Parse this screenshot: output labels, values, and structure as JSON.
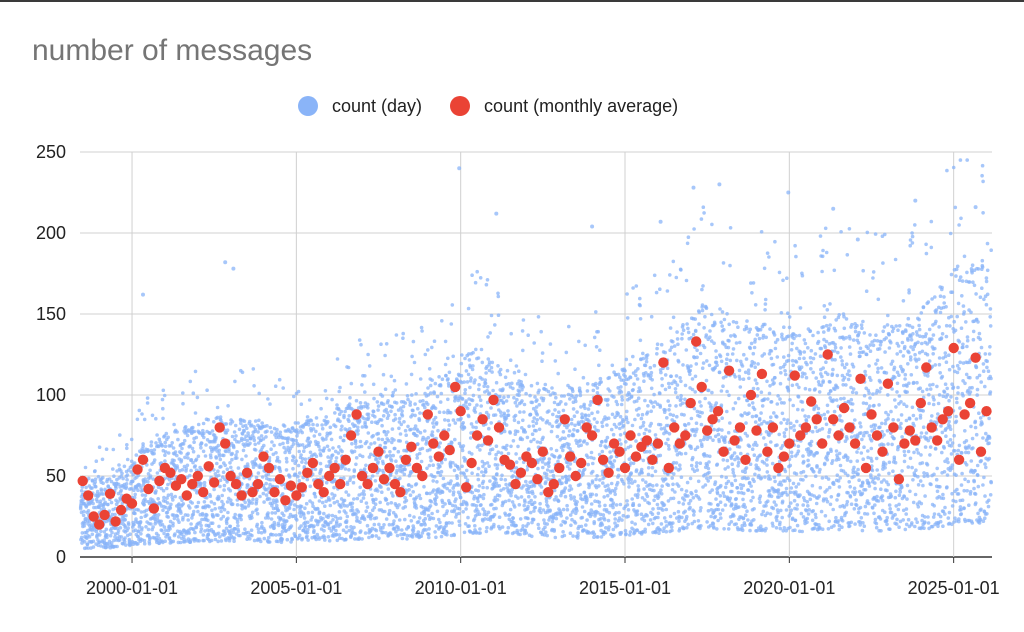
{
  "chart_data": {
    "type": "scatter",
    "title": "number of messages",
    "xlabel": "",
    "ylabel": "",
    "xlim": [
      "1998-06-01",
      "2026-03-01"
    ],
    "ylim": [
      0,
      250
    ],
    "yticks": [
      0,
      50,
      100,
      150,
      200,
      250
    ],
    "xticks": [
      "2000-01-01",
      "2005-01-01",
      "2010-01-01",
      "2015-01-01",
      "2020-01-01",
      "2025-01-01"
    ],
    "grid": true,
    "legend_position": "top",
    "series": [
      {
        "name": "count (day)",
        "color": "#8ab4f8",
        "marker": "small-dot",
        "trend": [
          [
            "1998-06",
            26
          ],
          [
            "1999-06",
            28
          ],
          [
            "2000-06",
            40
          ],
          [
            "2001-06",
            44
          ],
          [
            "2002-06",
            48
          ],
          [
            "2003-06",
            48
          ],
          [
            "2004-06",
            45
          ],
          [
            "2005-06",
            47
          ],
          [
            "2006-06",
            52
          ],
          [
            "2007-06",
            56
          ],
          [
            "2008-06",
            55
          ],
          [
            "2009-06",
            62
          ],
          [
            "2010-06",
            72
          ],
          [
            "2011-06",
            65
          ],
          [
            "2012-06",
            60
          ],
          [
            "2013-06",
            58
          ],
          [
            "2014-06",
            62
          ],
          [
            "2015-06",
            68
          ],
          [
            "2016-06",
            75
          ],
          [
            "2017-06",
            88
          ],
          [
            "2018-06",
            82
          ],
          [
            "2019-06",
            80
          ],
          [
            "2020-06",
            78
          ],
          [
            "2021-06",
            85
          ],
          [
            "2022-06",
            80
          ],
          [
            "2023-06",
            80
          ],
          [
            "2024-06",
            90
          ],
          [
            "2025-06",
            105
          ],
          [
            "2026-02",
            98
          ]
        ],
        "notable_points": [
          [
            "2009-12-15",
            240
          ],
          [
            "2017-02-01",
            228
          ],
          [
            "2017-11-15",
            230
          ],
          [
            "2019-12-20",
            225
          ],
          [
            "2023-11-01",
            220
          ],
          [
            "2025-09-01",
            216
          ],
          [
            "2002-11-01",
            182
          ],
          [
            "2003-02-01",
            178
          ],
          [
            "2000-05-01",
            162
          ],
          [
            "2011-02-01",
            212
          ],
          [
            "2014-01-01",
            204
          ],
          [
            "2021-05-01",
            215
          ],
          [
            "2016-02-01",
            207
          ],
          [
            "2022-02-01",
            196
          ]
        ]
      },
      {
        "name": "count (monthly average)",
        "color": "#ea4335",
        "marker": "dot",
        "points": [
          [
            "1998-07-01",
            47
          ],
          [
            "1998-09-01",
            38
          ],
          [
            "1998-11-01",
            25
          ],
          [
            "1999-01-01",
            20
          ],
          [
            "1999-03-01",
            26
          ],
          [
            "1999-05-01",
            39
          ],
          [
            "1999-07-01",
            22
          ],
          [
            "1999-09-01",
            29
          ],
          [
            "1999-11-01",
            36
          ],
          [
            "2000-01-01",
            33
          ],
          [
            "2000-03-01",
            54
          ],
          [
            "2000-05-01",
            60
          ],
          [
            "2000-07-01",
            42
          ],
          [
            "2000-09-01",
            30
          ],
          [
            "2000-11-01",
            47
          ],
          [
            "2001-01-01",
            55
          ],
          [
            "2001-03-01",
            52
          ],
          [
            "2001-05-01",
            44
          ],
          [
            "2001-07-01",
            48
          ],
          [
            "2001-09-01",
            38
          ],
          [
            "2001-11-01",
            45
          ],
          [
            "2002-01-01",
            50
          ],
          [
            "2002-03-01",
            40
          ],
          [
            "2002-05-01",
            56
          ],
          [
            "2002-07-01",
            46
          ],
          [
            "2002-09-01",
            80
          ],
          [
            "2002-11-01",
            70
          ],
          [
            "2003-01-01",
            50
          ],
          [
            "2003-03-01",
            45
          ],
          [
            "2003-05-01",
            38
          ],
          [
            "2003-07-01",
            52
          ],
          [
            "2003-09-01",
            40
          ],
          [
            "2003-11-01",
            45
          ],
          [
            "2004-01-01",
            62
          ],
          [
            "2004-03-01",
            55
          ],
          [
            "2004-05-01",
            40
          ],
          [
            "2004-07-01",
            48
          ],
          [
            "2004-09-01",
            35
          ],
          [
            "2004-11-01",
            44
          ],
          [
            "2005-01-01",
            38
          ],
          [
            "2005-03-01",
            43
          ],
          [
            "2005-05-01",
            52
          ],
          [
            "2005-07-01",
            58
          ],
          [
            "2005-09-01",
            45
          ],
          [
            "2005-11-01",
            40
          ],
          [
            "2006-01-01",
            50
          ],
          [
            "2006-03-01",
            55
          ],
          [
            "2006-05-01",
            45
          ],
          [
            "2006-07-01",
            60
          ],
          [
            "2006-09-01",
            75
          ],
          [
            "2006-11-01",
            88
          ],
          [
            "2007-01-01",
            50
          ],
          [
            "2007-03-01",
            45
          ],
          [
            "2007-05-01",
            55
          ],
          [
            "2007-07-01",
            65
          ],
          [
            "2007-09-01",
            48
          ],
          [
            "2007-11-01",
            55
          ],
          [
            "2008-01-01",
            45
          ],
          [
            "2008-03-01",
            40
          ],
          [
            "2008-05-01",
            60
          ],
          [
            "2008-07-01",
            68
          ],
          [
            "2008-09-01",
            55
          ],
          [
            "2008-11-01",
            50
          ],
          [
            "2009-01-01",
            88
          ],
          [
            "2009-03-01",
            70
          ],
          [
            "2009-05-01",
            62
          ],
          [
            "2009-07-01",
            75
          ],
          [
            "2009-09-01",
            66
          ],
          [
            "2009-11-01",
            105
          ],
          [
            "2010-01-01",
            90
          ],
          [
            "2010-03-01",
            43
          ],
          [
            "2010-05-01",
            58
          ],
          [
            "2010-07-01",
            75
          ],
          [
            "2010-09-01",
            85
          ],
          [
            "2010-11-01",
            72
          ],
          [
            "2011-01-01",
            97
          ],
          [
            "2011-03-01",
            80
          ],
          [
            "2011-05-01",
            60
          ],
          [
            "2011-07-01",
            57
          ],
          [
            "2011-09-01",
            45
          ],
          [
            "2011-11-01",
            52
          ],
          [
            "2012-01-01",
            62
          ],
          [
            "2012-03-01",
            58
          ],
          [
            "2012-05-01",
            48
          ],
          [
            "2012-07-01",
            65
          ],
          [
            "2012-09-01",
            40
          ],
          [
            "2012-11-01",
            45
          ],
          [
            "2013-01-01",
            55
          ],
          [
            "2013-03-01",
            85
          ],
          [
            "2013-05-01",
            62
          ],
          [
            "2013-07-01",
            50
          ],
          [
            "2013-09-01",
            58
          ],
          [
            "2013-11-01",
            80
          ],
          [
            "2014-01-01",
            75
          ],
          [
            "2014-03-01",
            97
          ],
          [
            "2014-05-01",
            60
          ],
          [
            "2014-07-01",
            52
          ],
          [
            "2014-09-01",
            70
          ],
          [
            "2014-11-01",
            65
          ],
          [
            "2015-01-01",
            55
          ],
          [
            "2015-03-01",
            75
          ],
          [
            "2015-05-01",
            62
          ],
          [
            "2015-07-01",
            68
          ],
          [
            "2015-09-01",
            72
          ],
          [
            "2015-11-01",
            60
          ],
          [
            "2016-01-01",
            70
          ],
          [
            "2016-03-01",
            120
          ],
          [
            "2016-05-01",
            55
          ],
          [
            "2016-07-01",
            80
          ],
          [
            "2016-09-01",
            70
          ],
          [
            "2016-11-01",
            75
          ],
          [
            "2017-01-01",
            95
          ],
          [
            "2017-03-01",
            133
          ],
          [
            "2017-05-01",
            105
          ],
          [
            "2017-07-01",
            78
          ],
          [
            "2017-09-01",
            85
          ],
          [
            "2017-11-01",
            90
          ],
          [
            "2018-01-01",
            65
          ],
          [
            "2018-03-01",
            115
          ],
          [
            "2018-05-01",
            72
          ],
          [
            "2018-07-01",
            80
          ],
          [
            "2018-09-01",
            60
          ],
          [
            "2018-11-01",
            100
          ],
          [
            "2019-01-01",
            78
          ],
          [
            "2019-03-01",
            113
          ],
          [
            "2019-05-01",
            65
          ],
          [
            "2019-07-01",
            80
          ],
          [
            "2019-09-01",
            55
          ],
          [
            "2019-11-01",
            62
          ],
          [
            "2020-01-01",
            70
          ],
          [
            "2020-03-01",
            112
          ],
          [
            "2020-05-01",
            75
          ],
          [
            "2020-07-01",
            80
          ],
          [
            "2020-09-01",
            96
          ],
          [
            "2020-11-01",
            85
          ],
          [
            "2021-01-01",
            70
          ],
          [
            "2021-03-01",
            125
          ],
          [
            "2021-05-01",
            85
          ],
          [
            "2021-07-01",
            75
          ],
          [
            "2021-09-01",
            92
          ],
          [
            "2021-11-01",
            80
          ],
          [
            "2022-01-01",
            70
          ],
          [
            "2022-03-01",
            110
          ],
          [
            "2022-05-01",
            55
          ],
          [
            "2022-07-01",
            88
          ],
          [
            "2022-09-01",
            75
          ],
          [
            "2022-11-01",
            65
          ],
          [
            "2023-01-01",
            107
          ],
          [
            "2023-03-01",
            80
          ],
          [
            "2023-05-01",
            48
          ],
          [
            "2023-07-01",
            70
          ],
          [
            "2023-09-01",
            78
          ],
          [
            "2023-11-01",
            72
          ],
          [
            "2024-01-01",
            95
          ],
          [
            "2024-03-01",
            117
          ],
          [
            "2024-05-01",
            80
          ],
          [
            "2024-07-01",
            72
          ],
          [
            "2024-09-01",
            85
          ],
          [
            "2024-11-01",
            90
          ],
          [
            "2025-01-01",
            129
          ],
          [
            "2025-03-01",
            60
          ],
          [
            "2025-05-01",
            88
          ],
          [
            "2025-07-01",
            95
          ],
          [
            "2025-09-01",
            123
          ],
          [
            "2025-11-01",
            65
          ],
          [
            "2026-01-01",
            90
          ]
        ]
      }
    ]
  }
}
